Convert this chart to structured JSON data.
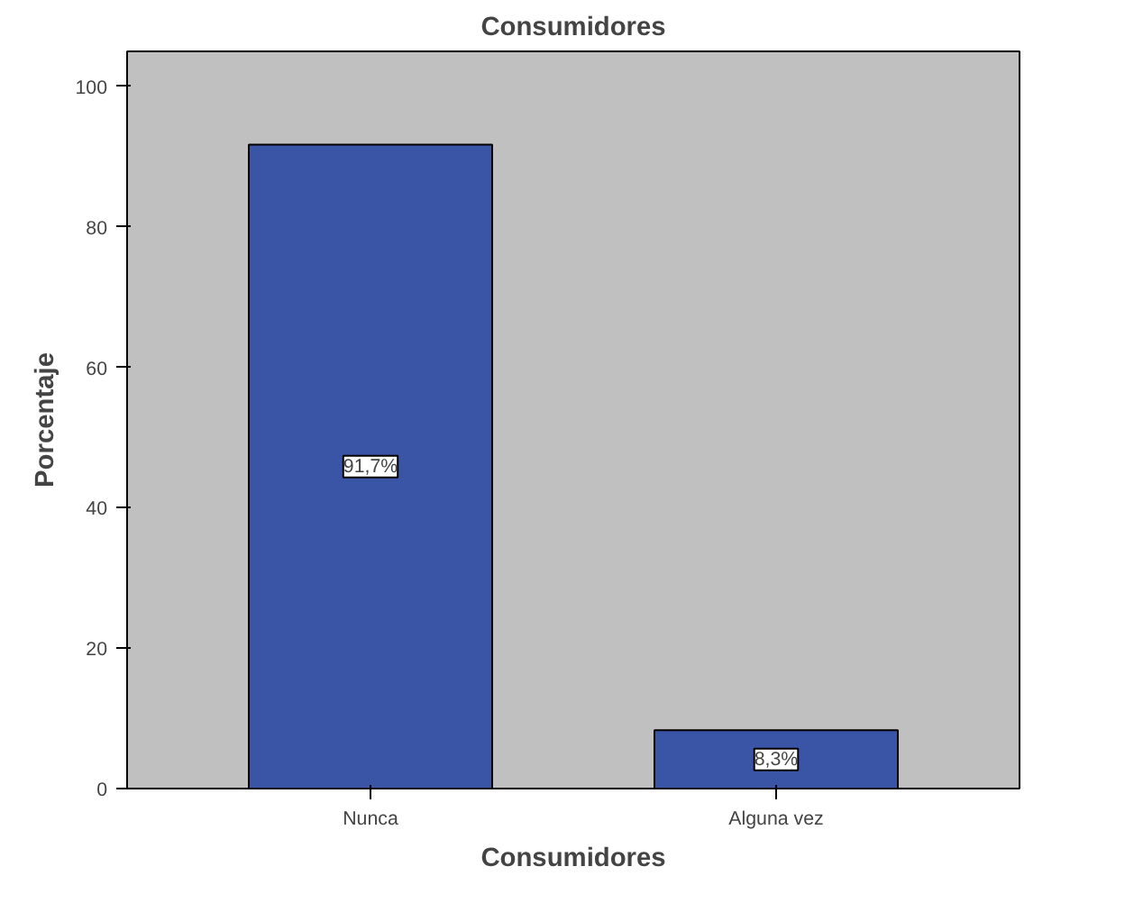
{
  "chart_data": {
    "type": "bar",
    "title": "Consumidores",
    "xlabel": "Consumidores",
    "ylabel": "Porcentaje",
    "categories": [
      "Nunca",
      "Alguna vez"
    ],
    "values": [
      91.7,
      8.3
    ],
    "value_labels": [
      "91,7%",
      "8,3%"
    ],
    "color": "#3a55a5",
    "ylim": [
      0,
      105
    ],
    "yticks": [
      0,
      20,
      40,
      60,
      80,
      100
    ],
    "grid": false
  }
}
